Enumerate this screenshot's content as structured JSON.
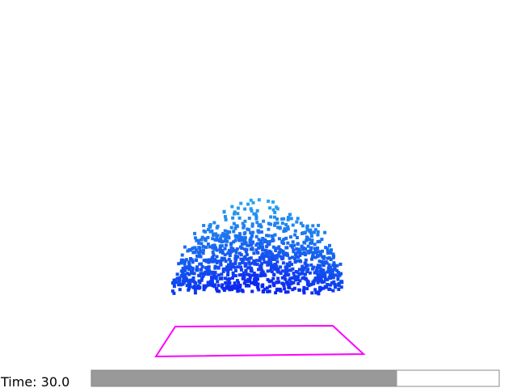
{
  "status": {
    "time_label": "Time: 30.0",
    "progress": 0.75
  }
}
